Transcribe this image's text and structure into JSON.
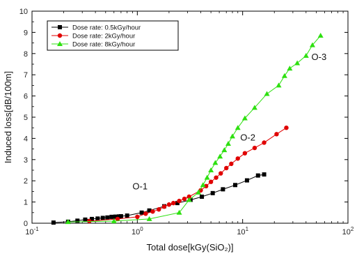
{
  "chart_data": {
    "type": "line",
    "xlabel": "Total dose[kGy(SiO₂)]",
    "ylabel": "Induced loss[dB/100m]",
    "x_scale": "log",
    "xlim": [
      0.1,
      100
    ],
    "ylim": [
      0,
      10
    ],
    "x_ticks": [
      {
        "value": 0.1,
        "base": "10",
        "exp": "-1"
      },
      {
        "value": 1,
        "base": "10",
        "exp": "0"
      },
      {
        "value": 10,
        "base": "10",
        "exp": "1"
      },
      {
        "value": 100,
        "base": "10",
        "exp": "2"
      }
    ],
    "y_ticks": [
      0,
      1,
      2,
      3,
      4,
      5,
      6,
      7,
      8,
      9,
      10
    ],
    "legend_position": "top-left",
    "series": [
      {
        "name": "Dose rate: 0.5kGy/hour",
        "color": "#000000",
        "marker": "square",
        "points": [
          [
            0.16,
            0.03
          ],
          [
            0.22,
            0.07
          ],
          [
            0.27,
            0.12
          ],
          [
            0.32,
            0.17
          ],
          [
            0.37,
            0.2
          ],
          [
            0.42,
            0.22
          ],
          [
            0.47,
            0.25
          ],
          [
            0.52,
            0.27
          ],
          [
            0.57,
            0.3
          ],
          [
            0.62,
            0.31
          ],
          [
            0.67,
            0.32
          ],
          [
            0.7,
            0.33
          ],
          [
            0.8,
            0.36
          ],
          [
            1.1,
            0.5
          ],
          [
            1.3,
            0.6
          ],
          [
            1.8,
            0.8
          ],
          [
            2.4,
            0.95
          ],
          [
            3.2,
            1.1
          ],
          [
            4.1,
            1.25
          ],
          [
            5.2,
            1.42
          ],
          [
            6.5,
            1.6
          ],
          [
            8.5,
            1.8
          ],
          [
            11,
            2.02
          ],
          [
            14,
            2.25
          ],
          [
            16,
            2.3
          ]
        ],
        "label": "O-1",
        "label_pos": [
          0.9,
          1.6
        ]
      },
      {
        "name": "Dose rate: 2kGy/hour",
        "color": "#e00000",
        "marker": "circle",
        "points": [
          [
            0.35,
            0.1
          ],
          [
            0.65,
            0.2
          ],
          [
            1.0,
            0.3
          ],
          [
            1.2,
            0.45
          ],
          [
            1.4,
            0.55
          ],
          [
            1.6,
            0.65
          ],
          [
            1.8,
            0.78
          ],
          [
            2.0,
            0.88
          ],
          [
            2.2,
            0.95
          ],
          [
            2.5,
            1.05
          ],
          [
            2.8,
            1.15
          ],
          [
            3.1,
            1.25
          ],
          [
            4.0,
            1.55
          ],
          [
            4.5,
            1.75
          ],
          [
            5.0,
            1.95
          ],
          [
            5.6,
            2.15
          ],
          [
            6.2,
            2.35
          ],
          [
            7.0,
            2.6
          ],
          [
            7.8,
            2.8
          ],
          [
            9.0,
            3.05
          ],
          [
            10.5,
            3.3
          ],
          [
            13,
            3.55
          ],
          [
            16,
            3.8
          ],
          [
            21,
            4.2
          ],
          [
            26,
            4.5
          ]
        ],
        "label": "O-2",
        "label_pos": [
          9.5,
          3.9
        ]
      },
      {
        "name": "Dose rate: 8kGy/hour",
        "color": "#2ee010",
        "marker": "triangle",
        "points": [
          [
            0.22,
            0.06
          ],
          [
            0.6,
            0.1
          ],
          [
            1.3,
            0.2
          ],
          [
            2.5,
            0.5
          ],
          [
            3.1,
            1.1
          ],
          [
            3.8,
            1.45
          ],
          [
            4.2,
            1.8
          ],
          [
            4.6,
            2.15
          ],
          [
            5.0,
            2.5
          ],
          [
            5.5,
            2.85
          ],
          [
            6.1,
            3.15
          ],
          [
            6.7,
            3.45
          ],
          [
            7.3,
            3.75
          ],
          [
            8.0,
            4.1
          ],
          [
            9.0,
            4.5
          ],
          [
            10.5,
            4.95
          ],
          [
            13,
            5.45
          ],
          [
            17,
            6.1
          ],
          [
            22,
            6.5
          ],
          [
            25,
            6.95
          ],
          [
            28,
            7.3
          ],
          [
            33,
            7.55
          ],
          [
            40,
            7.9
          ],
          [
            46,
            8.4
          ],
          [
            55,
            8.85
          ]
        ],
        "label": "O-3",
        "label_pos": [
          45,
          7.7
        ]
      }
    ]
  },
  "colors": {
    "background": "#ffffff",
    "axis": "#000000"
  }
}
